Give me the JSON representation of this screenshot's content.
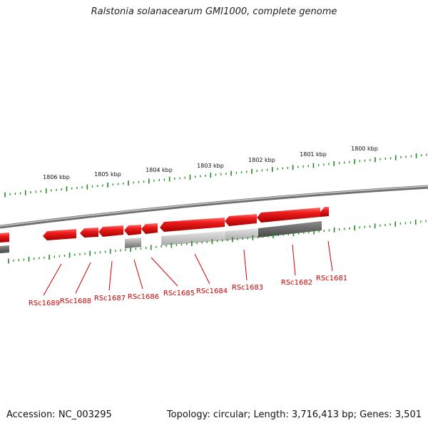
{
  "title": "Ralstonia solanacearum GMI1000, complete genome",
  "footer": {
    "accession": "Accession: NC_003295",
    "summary": "Topology: circular; Length: 3,716,413 bp; Genes: 3,501"
  },
  "colors": {
    "gene_forward": "#e8121b",
    "gene_dark": "#cc0000",
    "tick": "#1e8c1e",
    "backbone": "#888888",
    "label": "#cc0000",
    "gc_light": "#bdbdbd",
    "gc_dark": "#606060"
  },
  "kbp_labels": [
    "1800 kbp",
    "1801 kbp",
    "1802 kbp",
    "1803 kbp",
    "1804 kbp",
    "1805 kbp",
    "1806 kbp"
  ],
  "genes": [
    {
      "name": "RSc1681"
    },
    {
      "name": "RSc1682"
    },
    {
      "name": "RSc1683"
    },
    {
      "name": "RSc1684"
    },
    {
      "name": "RSc1685"
    },
    {
      "name": "RSc1686"
    },
    {
      "name": "RSc1687"
    },
    {
      "name": "RSc1688"
    },
    {
      "name": "RSc1689"
    }
  ]
}
